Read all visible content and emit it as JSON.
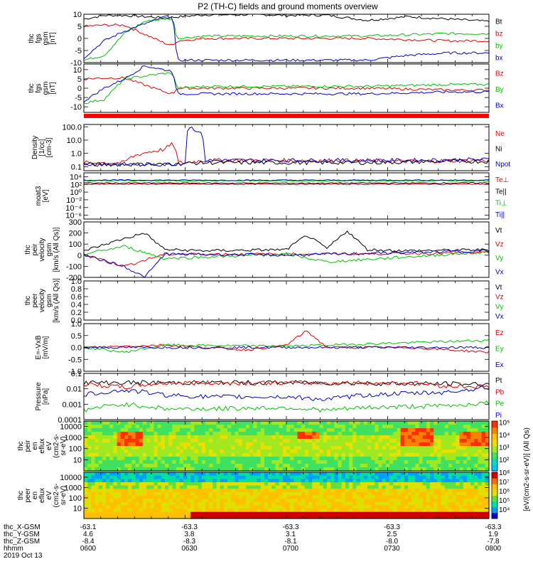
{
  "title": "P2 (TH-C) fields and ground moments overview",
  "chart_data": [
    {
      "type": "line",
      "ylabel": [
        "thc",
        "fgs",
        "gsm",
        "[nT]"
      ],
      "yticks": [
        -10,
        -5,
        0,
        5,
        10
      ],
      "ylim": [
        -10,
        10
      ],
      "series": [
        {
          "name": "Bt",
          "color": "#000000",
          "x": [
            0,
            0.05,
            0.1,
            0.2,
            0.3,
            0.4,
            0.45,
            0.5,
            0.55,
            0.6,
            0.7,
            0.8,
            0.9,
            1.0
          ],
          "values": [
            8,
            9.5,
            9.5,
            8.5,
            9.8,
            9.8,
            9.8,
            9.5,
            9.6,
            9.6,
            7.5,
            9,
            8,
            7
          ]
        },
        {
          "name": "bz",
          "color": "#e00000",
          "x": [
            0,
            0.05,
            0.1,
            0.2,
            0.22,
            0.23,
            0.3,
            0.5,
            0.7,
            0.9,
            1.0
          ],
          "values": [
            5,
            5.5,
            5.5,
            -2,
            -3,
            -1,
            0,
            0,
            0,
            -1,
            -1
          ]
        },
        {
          "name": "by",
          "color": "#00c000",
          "x": [
            0,
            0.05,
            0.1,
            0.15,
            0.2,
            0.22,
            0.23,
            0.3,
            0.5,
            0.7,
            0.9,
            1.0
          ],
          "values": [
            -9,
            -7,
            2,
            7,
            8,
            8,
            0,
            1,
            1,
            1,
            2,
            2
          ]
        },
        {
          "name": "bx",
          "color": "#0000cc",
          "x": [
            0,
            0.05,
            0.1,
            0.15,
            0.2,
            0.22,
            0.23,
            0.3,
            0.5,
            0.7,
            0.8,
            0.9,
            1.0
          ],
          "values": [
            -8,
            -1,
            3,
            6,
            9,
            9,
            -9,
            -9,
            -9,
            -9,
            -7,
            -6,
            -6
          ]
        }
      ]
    },
    {
      "type": "line",
      "ylabel": [
        "thc",
        "fgs",
        "gsm",
        "[nT]"
      ],
      "yticks": [
        -10,
        -5,
        0,
        5,
        10
      ],
      "ylim": [
        -13,
        13
      ],
      "series": [
        {
          "name": "Bz",
          "color": "#e00000",
          "x": [
            0,
            0.05,
            0.1,
            0.2,
            0.22,
            0.23,
            0.3,
            0.5,
            0.7,
            0.9,
            1.0
          ],
          "values": [
            5,
            5.5,
            5.5,
            -2,
            -3,
            0,
            0,
            0,
            0,
            -1,
            -1
          ]
        },
        {
          "name": "By",
          "color": "#00c000",
          "x": [
            0,
            0.05,
            0.1,
            0.2,
            0.22,
            0.23,
            0.3,
            0.5,
            0.7,
            0.9,
            1.0
          ],
          "values": [
            -8,
            -6,
            5,
            8,
            8,
            0,
            1,
            1,
            1,
            2,
            2
          ]
        },
        {
          "name": "Bx",
          "color": "#0000cc",
          "x": [
            0,
            0.05,
            0.1,
            0.15,
            0.22,
            0.23,
            0.3,
            0.5,
            0.7,
            0.9,
            1.0
          ],
          "values": [
            -7,
            0,
            5,
            12,
            9,
            -3,
            -3,
            -3,
            -3,
            -2,
            -2
          ]
        }
      ]
    },
    {
      "type": "line",
      "scale": "log",
      "ylabel": [
        "Density",
        "[1/cc]",
        "[cm-3]"
      ],
      "yticks": [
        0.1,
        1.0,
        10.0,
        100.0
      ],
      "ylim": [
        0.05,
        150
      ],
      "series": [
        {
          "name": "Ne",
          "color": "#e00000",
          "x": [
            0,
            0.1,
            0.2,
            0.22,
            0.23,
            0.25,
            0.3,
            0.6,
            0.8,
            1.0
          ],
          "values": [
            0.2,
            0.2,
            2,
            5,
            0.2,
            0.2,
            0.3,
            0.3,
            0.25,
            0.3
          ]
        },
        {
          "name": "Ni",
          "color": "#000000",
          "x": [
            0,
            0.2,
            0.3,
            0.5,
            0.7,
            0.9,
            1.0
          ],
          "values": [
            0.15,
            0.15,
            0.2,
            0.2,
            0.2,
            0.25,
            0.25
          ]
        },
        {
          "name": "Npot",
          "color": "#0000cc",
          "x": [
            0,
            0.2,
            0.25,
            0.26,
            0.3,
            0.6,
            0.8,
            1.0
          ],
          "values": [
            0.15,
            0.15,
            0.2,
            100,
            0.3,
            0.3,
            0.3,
            0.35
          ]
        }
      ]
    },
    {
      "type": "line",
      "scale": "log",
      "ylabel": [
        "moat3",
        "[eV]"
      ],
      "yticks": [
        1e-06,
        0.0001,
        0.01,
        1,
        100,
        10000
      ],
      "ylim": [
        1e-07,
        100000.0
      ],
      "series": [
        {
          "name": "Te⊥",
          "color": "#e00000",
          "x": [
            0,
            0.5,
            1.0
          ],
          "values": [
            120,
            110,
            120
          ]
        },
        {
          "name": "Te||",
          "color": "#000000",
          "x": [
            0,
            0.5,
            1.0
          ],
          "values": [
            220,
            200,
            230
          ]
        },
        {
          "name": "Ti⊥",
          "color": "#00c000",
          "x": [
            0,
            0.5,
            1.0
          ],
          "values": [
            900,
            800,
            900
          ]
        },
        {
          "name": "Ti||",
          "color": "#0000cc",
          "x": [
            0,
            0.5,
            1.0
          ],
          "values": [
            1300,
            1200,
            1300
          ]
        }
      ]
    },
    {
      "type": "line",
      "ylabel": [
        "thc",
        "peir",
        "velocity",
        "gsm",
        "[km/s (All Qs)]"
      ],
      "yticks": [
        -200,
        -100,
        0,
        100,
        200,
        300
      ],
      "ylim": [
        -200,
        300
      ],
      "series": [
        {
          "name": "Vt",
          "color": "#000000",
          "x": [
            0,
            0.1,
            0.15,
            0.2,
            0.3,
            0.5,
            0.55,
            0.6,
            0.65,
            0.7,
            0.8,
            1.0
          ],
          "values": [
            40,
            150,
            200,
            50,
            40,
            50,
            180,
            60,
            220,
            50,
            40,
            50
          ]
        },
        {
          "name": "Vz",
          "color": "#e00000",
          "x": [
            0,
            0.1,
            0.2,
            0.5,
            1.0
          ],
          "values": [
            10,
            -100,
            10,
            10,
            20
          ]
        },
        {
          "name": "Vy",
          "color": "#00c000",
          "x": [
            0,
            0.1,
            0.2,
            0.5,
            0.6,
            1.0
          ],
          "values": [
            10,
            80,
            -30,
            10,
            -60,
            30
          ]
        },
        {
          "name": "Vx",
          "color": "#0000cc",
          "x": [
            0,
            0.1,
            0.15,
            0.2,
            0.5,
            1.0
          ],
          "values": [
            0,
            -100,
            -200,
            10,
            0,
            40
          ]
        }
      ]
    },
    {
      "type": "line",
      "ylabel": [
        "thc",
        "peer",
        "velocity",
        "gsm",
        "[km/s (All Qs)]"
      ],
      "yticks": [
        0.0,
        0.2,
        0.4,
        0.6,
        0.8,
        1.0
      ],
      "ylim": [
        0,
        1
      ],
      "series": [
        {
          "name": "Vt",
          "color": "#000000",
          "values": []
        },
        {
          "name": "Vz",
          "color": "#e00000",
          "values": []
        },
        {
          "name": "Vy",
          "color": "#00c000",
          "values": []
        },
        {
          "name": "Vx",
          "color": "#0000cc",
          "values": []
        }
      ]
    },
    {
      "type": "line",
      "ylabel": [
        "E=-VxB",
        "[mV/m]"
      ],
      "yticks": [
        -1.0,
        -0.5,
        0.0,
        0.5,
        1.0
      ],
      "ylim": [
        -1,
        1
      ],
      "series": [
        {
          "name": "Ez",
          "color": "#e00000",
          "x": [
            0,
            0.2,
            0.4,
            0.5,
            0.55,
            0.6,
            0.8,
            1.0
          ],
          "values": [
            0,
            0.1,
            -0.1,
            0.1,
            0.7,
            0,
            0,
            -0.2
          ]
        },
        {
          "name": "Ey",
          "color": "#00c000",
          "x": [
            0,
            0.1,
            0.2,
            0.5,
            0.8,
            1.0
          ],
          "values": [
            0,
            -0.2,
            0.1,
            0.05,
            0.2,
            0.3
          ]
        },
        {
          "name": "Ex",
          "color": "#0000cc",
          "x": [
            0,
            0.5,
            1.0
          ],
          "values": [
            0,
            0,
            0
          ]
        }
      ]
    },
    {
      "type": "line",
      "scale": "log",
      "ylabel": [
        "Pressure",
        "[nPa]"
      ],
      "yticks": [
        0.0001,
        0.001,
        0.01,
        0.1
      ],
      "ylim": [
        0.0001,
        0.1
      ],
      "series": [
        {
          "name": "Pt",
          "color": "#000000",
          "x": [
            0,
            0.5,
            1.0
          ],
          "values": [
            0.025,
            0.025,
            0.02
          ]
        },
        {
          "name": "Pb",
          "color": "#e00000",
          "x": [
            0,
            0.1,
            0.2,
            0.5,
            0.8,
            0.9,
            1.0
          ],
          "values": [
            0.02,
            0.012,
            0.024,
            0.024,
            0.024,
            0.015,
            0.014
          ]
        },
        {
          "name": "Pe",
          "color": "#00c000",
          "x": [
            0,
            0.1,
            0.2,
            0.3,
            0.5,
            0.6,
            0.7,
            0.9,
            1.0
          ],
          "values": [
            0.0004,
            0.001,
            0.0005,
            0.0005,
            0.0006,
            0.0004,
            0.0006,
            0.0008,
            0.0012
          ]
        },
        {
          "name": "Pi",
          "color": "#0000cc",
          "x": [
            0,
            0.1,
            0.2,
            0.3,
            0.5,
            0.6,
            0.7,
            0.9,
            1.0
          ],
          "values": [
            0.004,
            0.008,
            0.004,
            0.003,
            0.003,
            0.002,
            0.004,
            0.006,
            0.012
          ]
        }
      ]
    },
    {
      "type": "heatmap",
      "ylabel": [
        "thc",
        "peir",
        "en",
        "eflux",
        "eV",
        "(cm2-s-",
        "sr-eV)"
      ],
      "yticks": [
        10,
        100,
        1000,
        10000
      ],
      "colorbar_ticks": [
        "10²",
        "10³",
        "10⁴",
        "10⁵"
      ]
    },
    {
      "type": "heatmap",
      "ylabel": [
        "thc",
        "peer",
        "en",
        "eflux",
        "eV",
        "(cm2-s-",
        "sr-eV)"
      ],
      "yticks": [
        10,
        100,
        1000,
        10000
      ],
      "colorbar_ticks": [
        "10⁴",
        "10⁵",
        "10⁶",
        "10⁷",
        "10⁸"
      ]
    }
  ],
  "colorbar_label": "[eV/(cm2-s-sr-eV)] (All Qs)",
  "ephemeris": {
    "rows": [
      {
        "label": "thc_X-GSM",
        "values": [
          "-63.1",
          "-63.3",
          "-63.3",
          "-63.3",
          "-63.3"
        ]
      },
      {
        "label": "thc_Y-GSM",
        "values": [
          "4.6",
          "3.8",
          "3.1",
          "2.5",
          "1.9"
        ]
      },
      {
        "label": "thc_Z-GSM",
        "values": [
          "-8.4",
          "-8.3",
          "-8.1",
          "-8.0",
          "-7.8"
        ]
      },
      {
        "label": "hhmm",
        "values": [
          "0600",
          "0630",
          "0700",
          "0730",
          "0800"
        ]
      }
    ],
    "date": "2019 Oct 13"
  }
}
